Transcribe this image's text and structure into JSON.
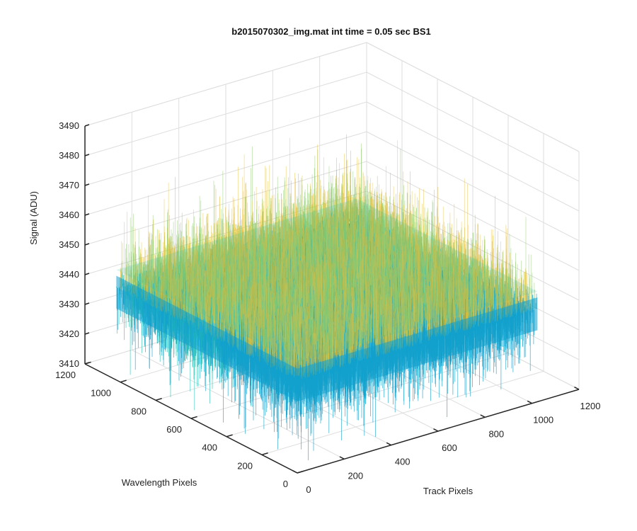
{
  "chart_data": {
    "type": "surface",
    "title": "b2015070302_img.mat int time = 0.05 sec   BS1",
    "xlabel": "Track Pixels",
    "ylabel": "Wavelength Pixels",
    "zlabel": "Signal (ADU)",
    "xlim": [
      0,
      1200
    ],
    "ylim": [
      0,
      1200
    ],
    "zlim": [
      3410,
      3490
    ],
    "xticks": [
      0,
      200,
      400,
      600,
      800,
      1000,
      1200
    ],
    "yticks": [
      0,
      200,
      400,
      600,
      800,
      1000,
      1200
    ],
    "zticks": [
      3410,
      3420,
      3430,
      3440,
      3450,
      3460,
      3470,
      3480,
      3490
    ],
    "data_extent": {
      "x": [
        1,
        1024
      ],
      "y": [
        1,
        1024
      ]
    },
    "signal_mean": 3441,
    "signal_typical_range": [
      3425,
      3460
    ],
    "signal_extreme_range": [
      3412,
      3475
    ],
    "grid": true,
    "box": "open-back-walls",
    "view": {
      "azimuth": -37.5,
      "elevation": 30
    },
    "colormap": [
      "#0F5DA8",
      "#13A1CC",
      "#2CC2B4",
      "#8CCB6A",
      "#E9C13A"
    ]
  }
}
